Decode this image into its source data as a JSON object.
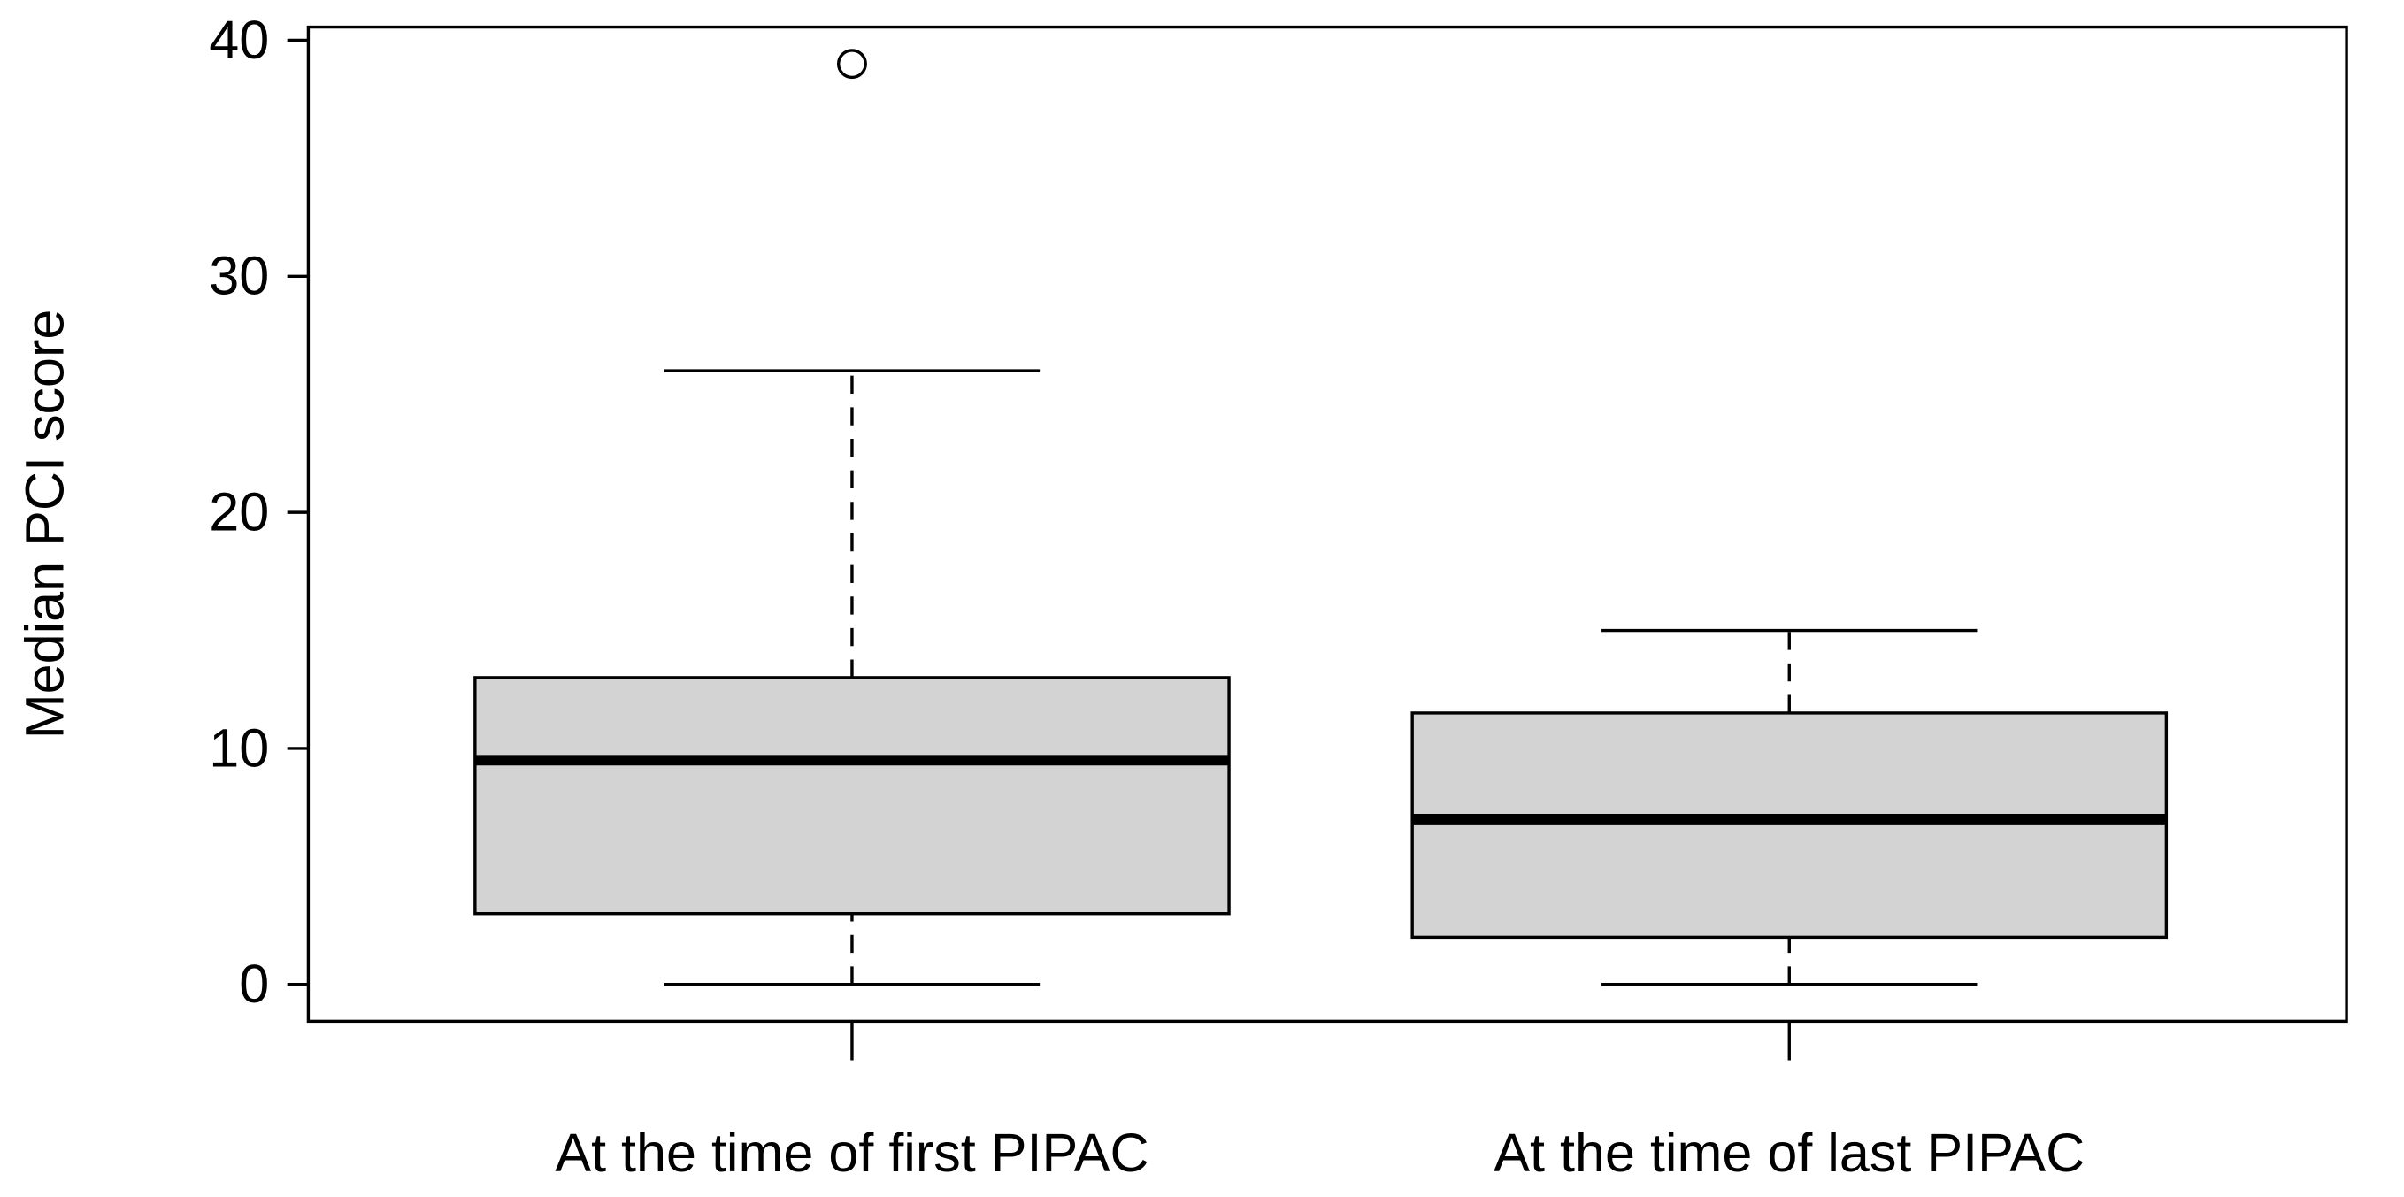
{
  "chart_data": {
    "type": "box",
    "ylabel": "Median PCI score",
    "categories": [
      "At the time of first PIPAC",
      "At the time of last PIPAC"
    ],
    "boxes": [
      {
        "whisker_low": 0,
        "q1": 3,
        "median": 9.5,
        "q3": 13,
        "whisker_high": 26,
        "outliers": [
          39
        ]
      },
      {
        "whisker_low": 0,
        "q1": 2,
        "median": 7,
        "q3": 11.5,
        "whisker_high": 15,
        "outliers": []
      }
    ],
    "color": "#d3d3d3",
    "ylim": [
      -1.56,
      40.56
    ],
    "yticks": [
      0,
      10,
      20,
      30,
      40
    ]
  }
}
